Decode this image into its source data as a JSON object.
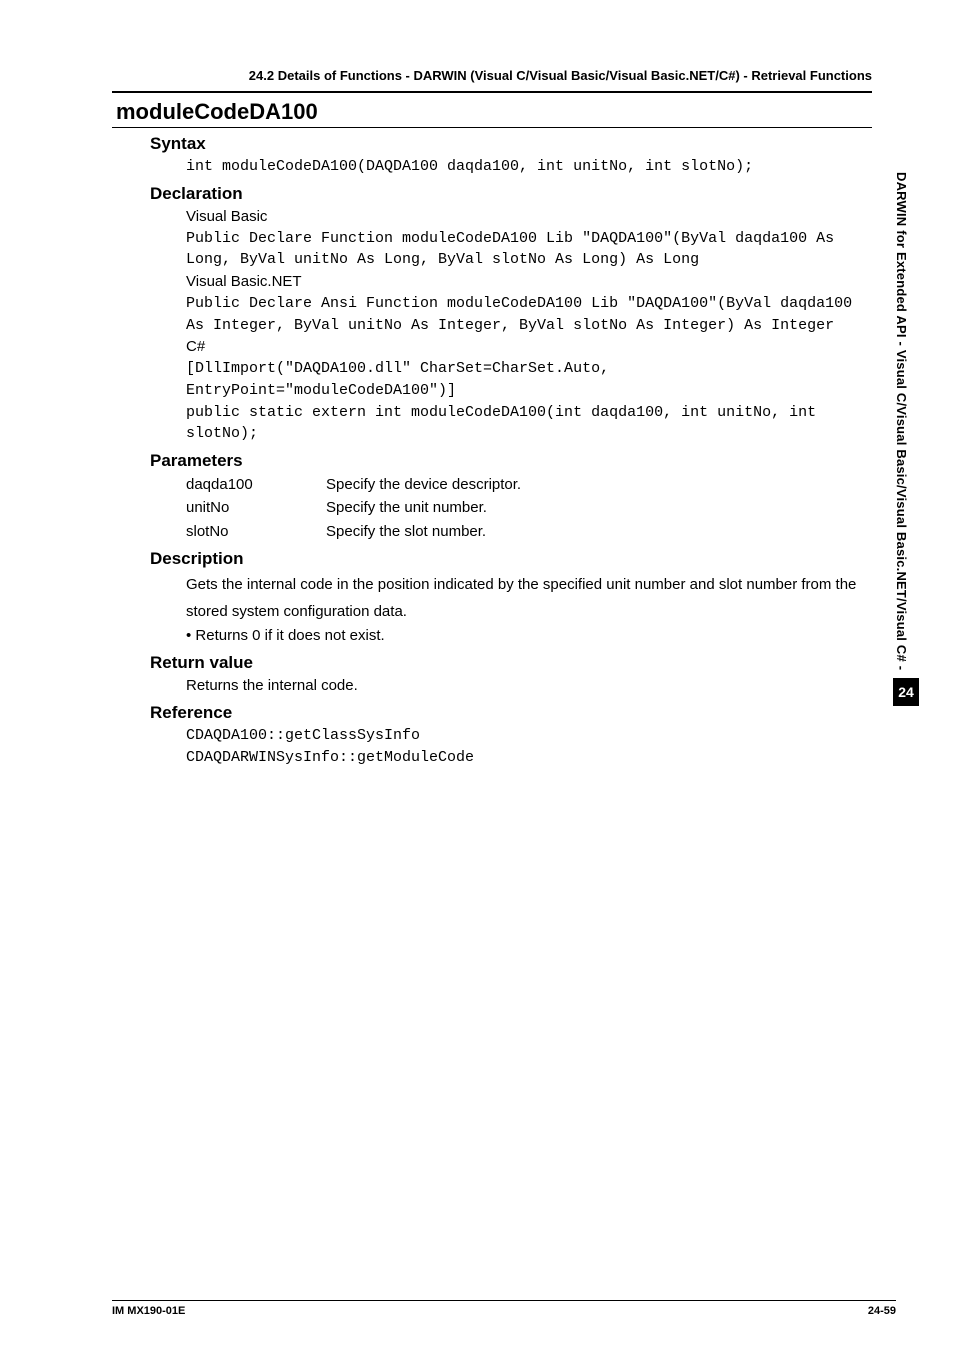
{
  "header": {
    "section_line": "24.2  Details of Functions - DARWIN (Visual C/Visual Basic/Visual Basic.NET/C#) - Retrieval Functions"
  },
  "title": "moduleCodeDA100",
  "syntax": {
    "heading": "Syntax",
    "code": "int moduleCodeDA100(DAQDA100 daqda100, int unitNo, int slotNo);"
  },
  "declaration": {
    "heading": "Declaration",
    "vb_label": "Visual Basic",
    "vb_code": "Public Declare Function moduleCodeDA100 Lib \"DAQDA100\"(ByVal daqda100 As Long, ByVal unitNo As Long, ByVal slotNo As Long) As Long",
    "vbnet_label": "Visual Basic.NET",
    "vbnet_code": "Public Declare Ansi Function moduleCodeDA100 Lib \"DAQDA100\"(ByVal daqda100 As Integer, ByVal unitNo As Integer, ByVal slotNo As Integer) As Integer",
    "cs_label": "C#",
    "cs_code": "[DllImport(\"DAQDA100.dll\" CharSet=CharSet.Auto, EntryPoint=\"moduleCodeDA100\")]\npublic static extern int moduleCodeDA100(int daqda100, int unitNo, int slotNo);"
  },
  "parameters": {
    "heading": "Parameters",
    "rows": [
      {
        "name": "daqda100",
        "desc": "Specify the device descriptor."
      },
      {
        "name": "unitNo",
        "desc": "Specify the unit number."
      },
      {
        "name": "slotNo",
        "desc": "Specify the slot number."
      }
    ]
  },
  "description": {
    "heading": "Description",
    "para": "Gets the internal code in the position indicated by the specified unit number and slot number from the stored system configuration data.",
    "bullet": "Returns 0 if it does not exist."
  },
  "return_value": {
    "heading": "Return value",
    "text": "Returns the internal code."
  },
  "reference": {
    "heading": "Reference",
    "code": "CDAQDA100::getClassSysInfo\nCDAQDARWINSysInfo::getModuleCode"
  },
  "side": {
    "text": "DARWIN for Extended API - Visual C/Visual Basic/Visual Basic.NET/Visual C# -",
    "chapter": "24"
  },
  "footer": {
    "left": "IM MX190-01E",
    "right": "24-59"
  }
}
